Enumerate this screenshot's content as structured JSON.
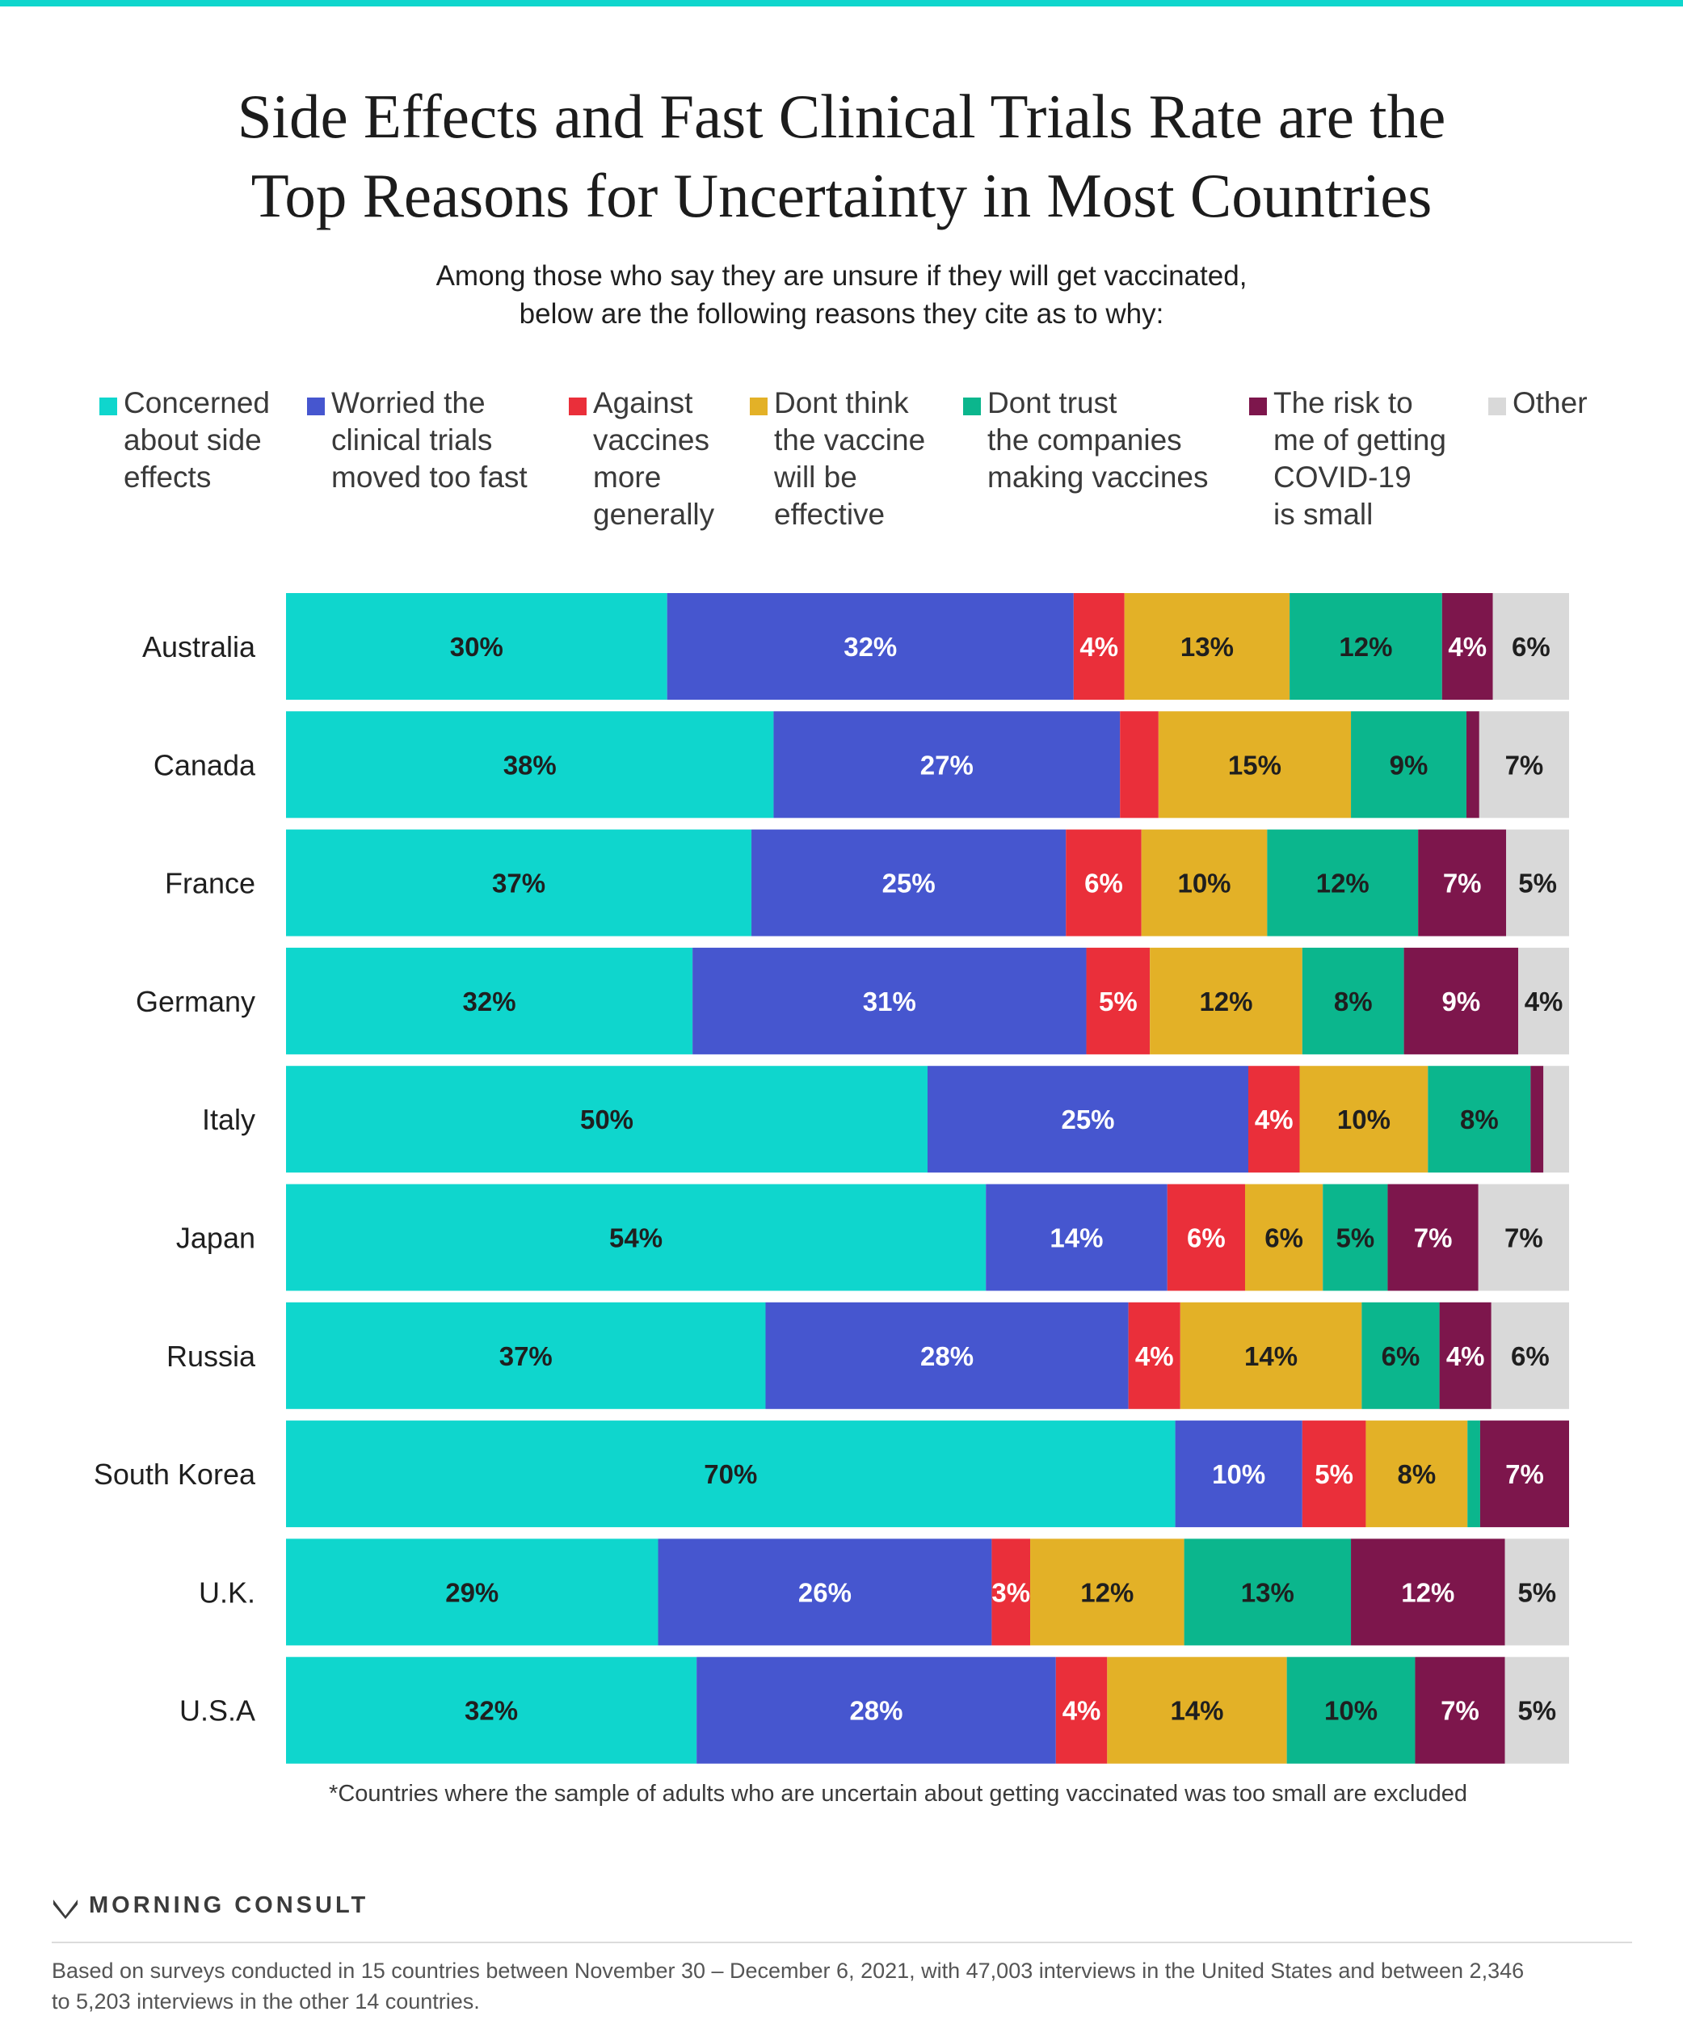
{
  "title": [
    "Side Effects and Fast Clinical Trials Rate are the",
    "Top Reasons for Uncertainty in Most Countries"
  ],
  "subtitle": [
    "Among those who say they are unsure if they will get vaccinated,",
    "below are the following reasons they cite as to why:"
  ],
  "legend": [
    {
      "lines": [
        "Concerned",
        "about side",
        "effects"
      ],
      "color": "#0fd6cd"
    },
    {
      "lines": [
        "Worried the",
        "clinical trials",
        "moved too fast"
      ],
      "color": "#4656cf"
    },
    {
      "lines": [
        "Against",
        "vaccines",
        "more",
        "generally"
      ],
      "color": "#ea2f3a"
    },
    {
      "lines": [
        "Dont think",
        "the vaccine",
        "will be",
        "effective"
      ],
      "color": "#e3b127"
    },
    {
      "lines": [
        "Dont trust",
        "the companies",
        "making vaccines"
      ],
      "color": "#0bb68d"
    },
    {
      "lines": [
        "The risk to",
        "me of getting",
        "COVID-19",
        "is small"
      ],
      "color": "#7d164c"
    },
    {
      "lines": [
        "Other"
      ],
      "color": "#d9d9d9"
    }
  ],
  "chart_data": {
    "type": "bar",
    "orientation": "horizontal",
    "stacked": true,
    "unit": "%",
    "categories": [
      "Australia",
      "Canada",
      "France",
      "Germany",
      "Italy",
      "Japan",
      "Russia",
      "South Korea",
      "U.K.",
      "U.S.A"
    ],
    "series": [
      {
        "name": "Concerned about side effects",
        "values": [
          30,
          38,
          37,
          32,
          50,
          54,
          37,
          70,
          29,
          32
        ],
        "labels": [
          "30%",
          "38%",
          "37%",
          "32%",
          "50%",
          "54%",
          "37%",
          "70%",
          "29%",
          "32%"
        ]
      },
      {
        "name": "Worried the clinical trials moved too fast",
        "values": [
          32,
          27,
          25,
          31,
          25,
          14,
          28,
          10,
          26,
          28
        ],
        "labels": [
          "32%",
          "27%",
          "25%",
          "31%",
          "25%",
          "14%",
          "28%",
          "10%",
          "26%",
          "28%"
        ]
      },
      {
        "name": "Against vaccines more generally",
        "values": [
          4,
          3,
          6,
          5,
          4,
          6,
          4,
          5,
          3,
          4
        ],
        "labels": [
          "4%",
          "",
          "6%",
          "5%",
          "4%",
          "6%",
          "4%",
          "5%",
          "3%",
          "4%"
        ]
      },
      {
        "name": "Dont think the vaccine will be effective",
        "values": [
          13,
          15,
          10,
          12,
          10,
          6,
          14,
          8,
          12,
          14
        ],
        "labels": [
          "13%",
          "15%",
          "10%",
          "12%",
          "10%",
          "6%",
          "14%",
          "8%",
          "12%",
          "14%"
        ]
      },
      {
        "name": "Dont trust the companies making vaccines",
        "values": [
          12,
          9,
          12,
          8,
          8,
          5,
          6,
          1,
          13,
          10
        ],
        "labels": [
          "12%",
          "9%",
          "12%",
          "8%",
          "8%",
          "5%",
          "6%",
          "",
          "13%",
          "10%"
        ]
      },
      {
        "name": "The risk to me of getting COVID-19 is small",
        "values": [
          4,
          1,
          7,
          9,
          1,
          7,
          4,
          7,
          12,
          7
        ],
        "labels": [
          "4%",
          "",
          "7%",
          "9%",
          "",
          "7%",
          "4%",
          "7%",
          "12%",
          "7%"
        ]
      },
      {
        "name": "Other",
        "values": [
          6,
          7,
          5,
          4,
          2,
          7,
          6,
          0,
          5,
          5
        ],
        "labels": [
          "6%",
          "7%",
          "5%",
          "4%",
          "",
          "7%",
          "6%",
          "",
          "5%",
          "5%"
        ]
      }
    ]
  },
  "footnote": "*Countries where the sample of adults who are uncertain about getting vaccinated was too small are excluded",
  "brand": "MORNING CONSULT",
  "source": [
    "Based on surveys conducted in 15 countries between November 30 – December 6, 2021, with 47,003 interviews in the United States and between 2,346",
    "to 5,203 interviews in the other 14 countries."
  ]
}
